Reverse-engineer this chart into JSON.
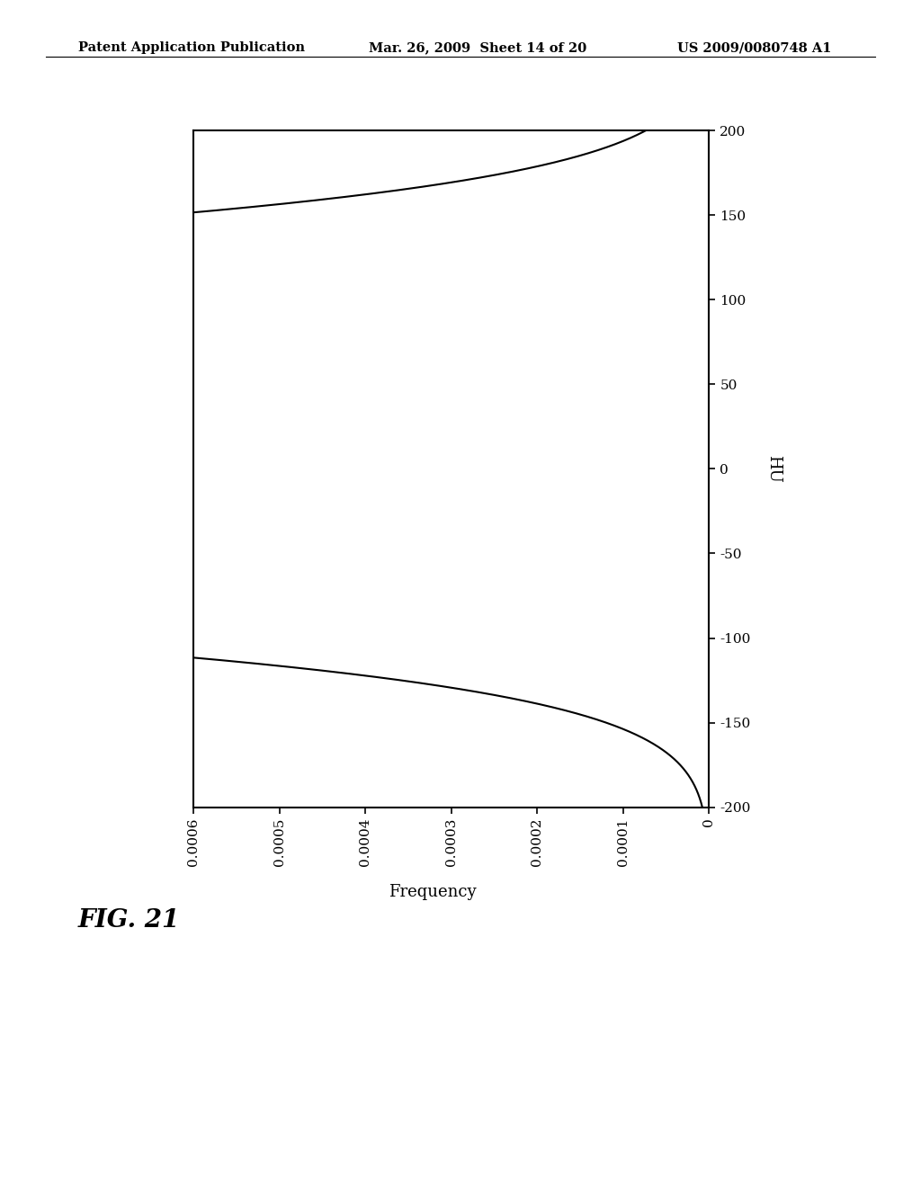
{
  "title": "",
  "xlabel": "Frequency",
  "ylabel": "HU",
  "ylim": [
    -200,
    200
  ],
  "xlim": [
    0.0006,
    0
  ],
  "yticks": [
    -200,
    -150,
    -100,
    -50,
    0,
    50,
    100,
    150,
    200
  ],
  "xticks": [
    0.0006,
    0.0005,
    0.0004,
    0.0003,
    0.0002,
    0.0001,
    0
  ],
  "xtick_labels": [
    "0.0006",
    "0.0005",
    "0.0004",
    "0.0003",
    "0.0002",
    "0.0001",
    "0"
  ],
  "gauss_mean": 20,
  "gauss_std": 60,
  "line_color": "#000000",
  "line_width": 1.5,
  "background_color": "#ffffff",
  "fig_label": "FIG. 21",
  "header_left": "Patent Application Publication",
  "header_mid": "Mar. 26, 2009  Sheet 14 of 20",
  "header_right": "US 2009/0080748 A1"
}
